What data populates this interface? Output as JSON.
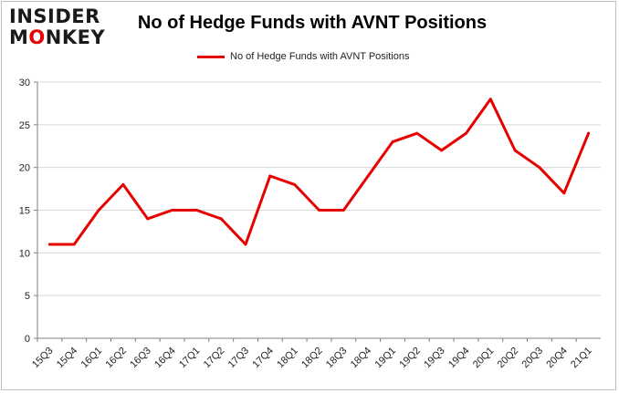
{
  "logo": {
    "line1": "INSIDER",
    "line2": "MONKEY"
  },
  "colors": {
    "series": "#e60000",
    "logo_accent": "#e60000",
    "grid": "#d9d9d9",
    "axis": "#808080"
  },
  "chart_data": {
    "type": "line",
    "title": "No of Hedge Funds with AVNT Positions",
    "xlabel": "",
    "ylabel": "",
    "categories": [
      "15Q3",
      "15Q4",
      "16Q1",
      "16Q2",
      "16Q3",
      "16Q4",
      "17Q1",
      "17Q2",
      "17Q3",
      "17Q4",
      "18Q1",
      "18Q2",
      "18Q3",
      "18Q4",
      "19Q1",
      "19Q2",
      "19Q3",
      "19Q4",
      "20Q1",
      "20Q2",
      "20Q3",
      "20Q4",
      "21Q1"
    ],
    "series": [
      {
        "name": "No of Hedge Funds with AVNT Positions",
        "values": [
          11,
          11,
          15,
          18,
          14,
          15,
          15,
          14,
          11,
          19,
          18,
          15,
          15,
          19,
          23,
          24,
          22,
          24,
          28,
          22,
          20,
          17,
          24
        ]
      }
    ],
    "ylim": [
      0,
      30
    ],
    "yticks": [
      0,
      5,
      10,
      15,
      20,
      25,
      30
    ],
    "grid": true,
    "legend_position": "top-center"
  }
}
